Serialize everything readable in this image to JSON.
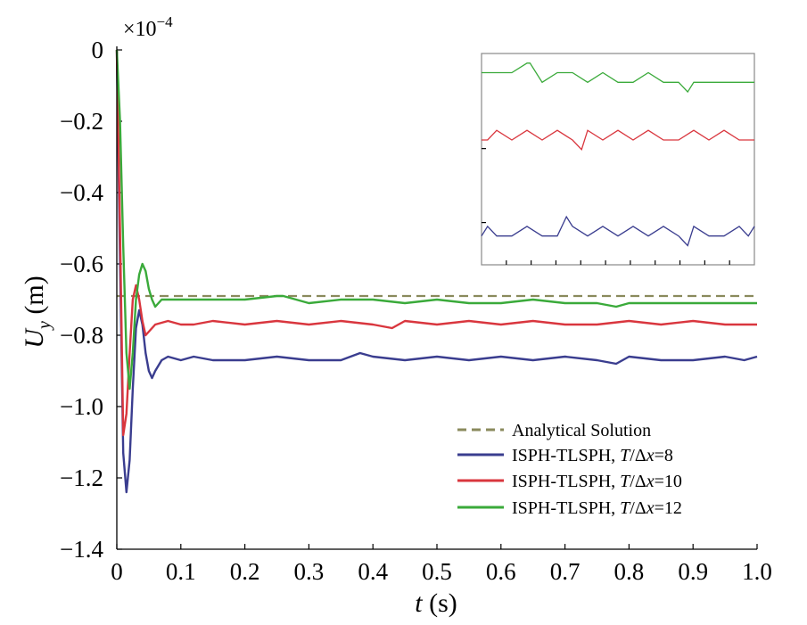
{
  "chart_data": {
    "type": "line",
    "multiplier": "×10",
    "multiplier_exponent": "−4",
    "ylabel": "U",
    "ylabel_sub": "y",
    "ylabel_unit": " (m)",
    "xlabel": "t",
    "xlabel_unit": " (s)",
    "xlim": [
      0,
      1.0
    ],
    "ylim": [
      -1.4,
      0
    ],
    "xticks": [
      "0",
      "0.1",
      "0.2",
      "0.3",
      "0.4",
      "0.5",
      "0.6",
      "0.7",
      "0.8",
      "0.9",
      "1.0"
    ],
    "yticks": [
      "0",
      "−0.2",
      "−0.4",
      "−0.6",
      "−0.8",
      "−1.0",
      "−1.2",
      "−1.4"
    ],
    "legend_position": "lower-right",
    "inset": true,
    "grid": false,
    "series": [
      {
        "name": "Analytical Solution",
        "color": "#8a8a5c",
        "style": "dashed",
        "x": [
          0,
          1.0
        ],
        "y": [
          -0.69,
          -0.69
        ]
      },
      {
        "name": "ISPH-TLSPH, T/Δx=8",
        "name_prefix": "ISPH-TLSPH, ",
        "name_var": "T",
        "name_delta": "/Δ",
        "name_var2": "x",
        "name_value": "=8",
        "color": "#3a3d8f",
        "style": "solid",
        "x": [
          0,
          0.005,
          0.01,
          0.015,
          0.02,
          0.025,
          0.03,
          0.035,
          0.04,
          0.045,
          0.05,
          0.055,
          0.06,
          0.07,
          0.08,
          0.1,
          0.12,
          0.15,
          0.2,
          0.25,
          0.3,
          0.35,
          0.38,
          0.4,
          0.45,
          0.5,
          0.55,
          0.6,
          0.65,
          0.7,
          0.75,
          0.78,
          0.8,
          0.85,
          0.9,
          0.95,
          0.98,
          1.0
        ],
        "y": [
          0,
          -0.6,
          -1.13,
          -1.24,
          -1.15,
          -0.95,
          -0.78,
          -0.73,
          -0.77,
          -0.85,
          -0.9,
          -0.92,
          -0.9,
          -0.87,
          -0.86,
          -0.87,
          -0.86,
          -0.87,
          -0.87,
          -0.86,
          -0.87,
          -0.87,
          -0.85,
          -0.86,
          -0.87,
          -0.86,
          -0.87,
          -0.86,
          -0.87,
          -0.86,
          -0.87,
          -0.88,
          -0.86,
          -0.87,
          -0.87,
          -0.86,
          -0.87,
          -0.86
        ]
      },
      {
        "name": "ISPH-TLSPH, T/Δx=10",
        "name_prefix": "ISPH-TLSPH, ",
        "name_var": "T",
        "name_delta": "/Δ",
        "name_var2": "x",
        "name_value": "=10",
        "color": "#d9363e",
        "style": "solid",
        "x": [
          0,
          0.005,
          0.01,
          0.015,
          0.02,
          0.025,
          0.03,
          0.035,
          0.04,
          0.045,
          0.05,
          0.06,
          0.08,
          0.1,
          0.12,
          0.15,
          0.2,
          0.25,
          0.3,
          0.35,
          0.4,
          0.43,
          0.45,
          0.5,
          0.55,
          0.6,
          0.65,
          0.7,
          0.75,
          0.8,
          0.85,
          0.9,
          0.95,
          1.0
        ],
        "y": [
          0,
          -0.5,
          -1.08,
          -1.02,
          -0.85,
          -0.7,
          -0.66,
          -0.7,
          -0.76,
          -0.8,
          -0.79,
          -0.77,
          -0.76,
          -0.77,
          -0.77,
          -0.76,
          -0.77,
          -0.76,
          -0.77,
          -0.76,
          -0.77,
          -0.78,
          -0.76,
          -0.77,
          -0.76,
          -0.77,
          -0.76,
          -0.77,
          -0.77,
          -0.76,
          -0.77,
          -0.76,
          -0.77,
          -0.77
        ]
      },
      {
        "name": "ISPH-TLSPH, T/Δx=12",
        "name_prefix": "ISPH-TLSPH, ",
        "name_var": "T",
        "name_delta": "/Δ",
        "name_var2": "x",
        "name_value": "=12",
        "color": "#3aaa3a",
        "style": "solid",
        "x": [
          0,
          0.005,
          0.01,
          0.015,
          0.02,
          0.025,
          0.03,
          0.035,
          0.04,
          0.045,
          0.05,
          0.055,
          0.06,
          0.07,
          0.08,
          0.1,
          0.15,
          0.2,
          0.25,
          0.26,
          0.3,
          0.35,
          0.4,
          0.45,
          0.5,
          0.55,
          0.6,
          0.65,
          0.7,
          0.75,
          0.78,
          0.8,
          0.85,
          0.9,
          0.95,
          1.0
        ],
        "y": [
          0,
          -0.2,
          -0.55,
          -0.85,
          -0.95,
          -0.85,
          -0.7,
          -0.63,
          -0.6,
          -0.62,
          -0.67,
          -0.7,
          -0.72,
          -0.7,
          -0.7,
          -0.7,
          -0.7,
          -0.7,
          -0.69,
          -0.69,
          -0.71,
          -0.7,
          -0.7,
          -0.71,
          -0.7,
          -0.71,
          -0.71,
          -0.7,
          -0.71,
          -0.71,
          -0.72,
          -0.71,
          -0.71,
          -0.71,
          -0.71,
          -0.71
        ]
      }
    ]
  }
}
